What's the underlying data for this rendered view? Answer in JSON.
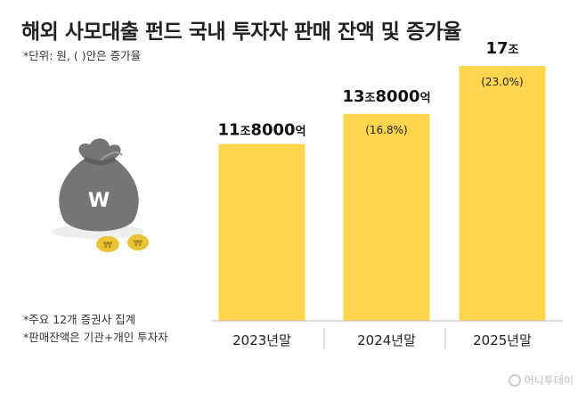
{
  "header": {
    "title": "해외 사모대출 펀드 국내 투자자 판매 잔액 및 증가율",
    "unit_note": "*단위: 원, ( )안은 증가율"
  },
  "notes": [
    "*주요 12개 증권사 집계",
    "*판매잔액은 기관+개인 투자자"
  ],
  "brand": {
    "text": "머니투데이"
  },
  "illustration": {
    "coin_symbol": "₩",
    "bag_symbol": "W"
  },
  "colors": {
    "bar": "#FDD64E",
    "bag": "#757575",
    "coin": "#E8C335"
  },
  "chart_data": {
    "type": "bar",
    "title": "해외 사모대출 펀드 국내 투자자 판매 잔액 및 증가율",
    "xlabel": "",
    "ylabel": "",
    "categories": [
      "2023년말",
      "2024년말",
      "2025년말"
    ],
    "values": [
      11.8,
      13.8,
      17
    ],
    "value_labels": [
      {
        "number": "11",
        "unit1": "조",
        "number2": "8000",
        "unit2": "억"
      },
      {
        "number": "13",
        "unit1": "조",
        "number2": "8000",
        "unit2": "억"
      },
      {
        "number": "17",
        "unit1": "조",
        "number2": "",
        "unit2": ""
      }
    ],
    "growth_labels": [
      "",
      "(16.8%)",
      "(23.0%)"
    ],
    "ylim": [
      0,
      17
    ],
    "grid": false,
    "legend": "none"
  }
}
